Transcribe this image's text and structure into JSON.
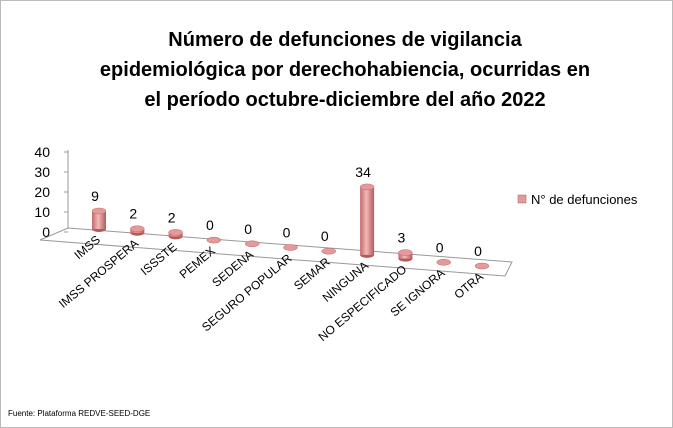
{
  "chart_data": {
    "type": "bar3d",
    "title": [
      "Número de defunciones de vigilancia",
      "epidemiológica por derechohabiencia, ocurridas en",
      "el período octubre-diciembre del año 2022"
    ],
    "categories": [
      "IMSS",
      "IMSS PROSPERA",
      "ISSSTE",
      "PEMEX",
      "SEDENA",
      "SEGURO POPULAR",
      "SEMAR",
      "NINGUNA",
      "NO ESPECIFICADO",
      "SE IGNORA",
      "OTRA"
    ],
    "series": [
      {
        "name": "N° de defunciones",
        "color": "#e39a9a",
        "values": [
          9,
          2,
          2,
          0,
          0,
          0,
          0,
          34,
          3,
          0,
          0
        ]
      }
    ],
    "ylim": [
      0,
      40
    ],
    "yticks": [
      0,
      10,
      20,
      30,
      40
    ],
    "legend": "right",
    "source": "Fuente:  Plataforma  REDVE-SEED-DGE"
  }
}
